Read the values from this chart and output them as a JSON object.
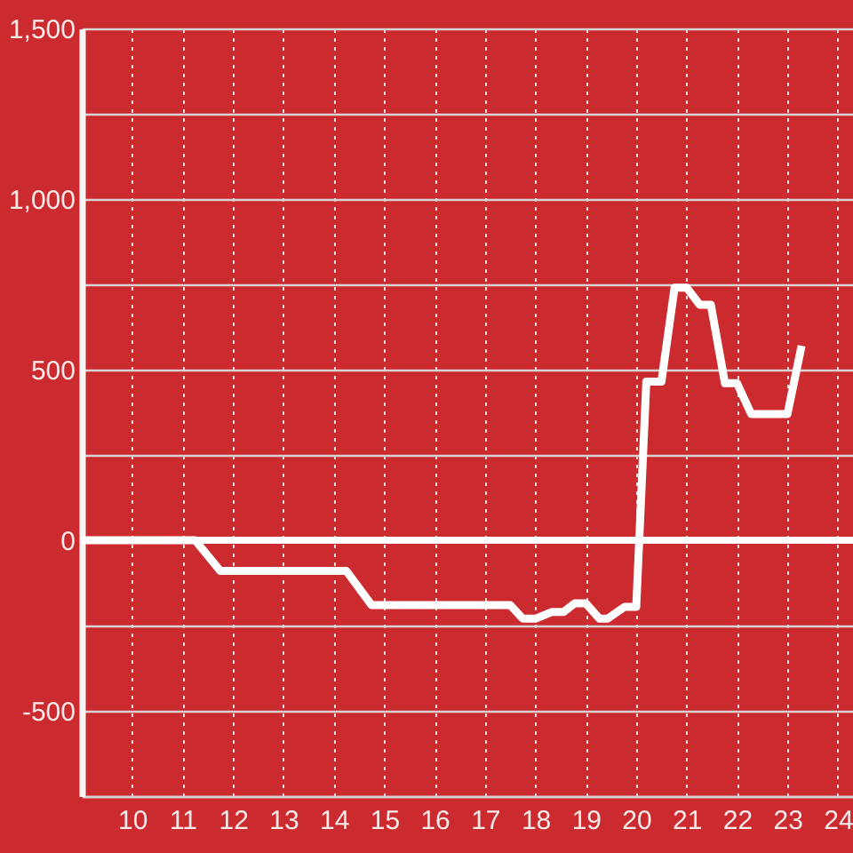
{
  "chart_data": {
    "type": "line",
    "x": [
      9,
      11.25,
      11.75,
      14.25,
      14.75,
      17.5,
      17.75,
      18.0,
      18.33,
      18.56,
      18.78,
      19.0,
      19.27,
      19.43,
      19.77,
      20.0,
      20.2,
      20.5,
      20.76,
      21.0,
      21.26,
      21.48,
      21.76,
      22.0,
      22.28,
      23.0,
      23.28
    ],
    "values": [
      0,
      0,
      -90,
      -90,
      -190,
      -190,
      -230,
      -230,
      -210,
      -210,
      -185,
      -185,
      -230,
      -230,
      -195,
      -195,
      465,
      465,
      740,
      740,
      690,
      690,
      460,
      460,
      370,
      370,
      570
    ],
    "color": "#ffffff",
    "xlim": [
      9,
      24.3
    ],
    "xticks": [
      10,
      11,
      12,
      13,
      14,
      15,
      16,
      17,
      18,
      19,
      20,
      21,
      22,
      23,
      24
    ],
    "ylim": [
      -750,
      1500
    ],
    "yticks": [
      -500,
      {
        "value": -250,
        "label": null
      },
      0,
      {
        "value": 250,
        "label": null
      },
      500,
      {
        "value": 750,
        "label": null
      },
      {
        "value": 1000,
        "label": "1,000"
      },
      {
        "value": 1250,
        "label": null
      },
      {
        "value": 1500,
        "label": "1,500"
      }
    ],
    "grid": true,
    "ref_lines": [
      {
        "axis": "y",
        "value": 0,
        "color": "#ffffff"
      }
    ]
  }
}
